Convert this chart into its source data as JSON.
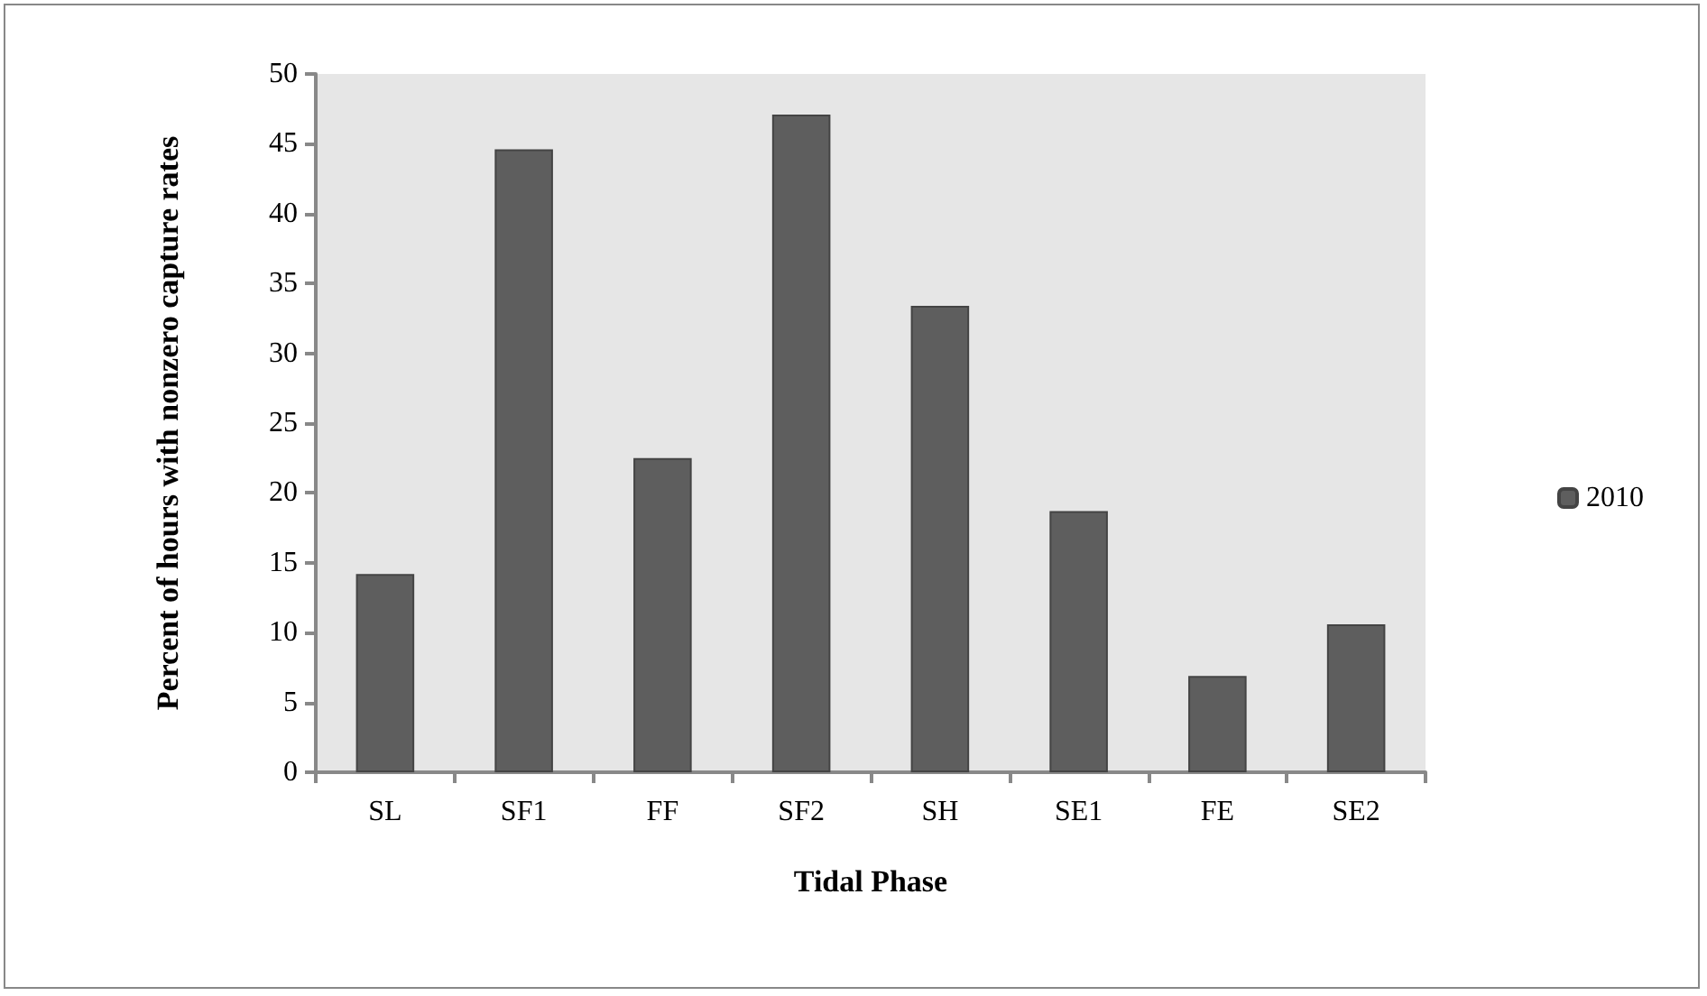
{
  "chart_data": {
    "type": "bar",
    "xlabel": "Tidal Phase",
    "ylabel": "Percent of hours with nonzero capture rates",
    "categories": [
      "SL",
      "SF1",
      "FF",
      "SF2",
      "SH",
      "SE1",
      "FE",
      "SE2"
    ],
    "series": [
      {
        "name": "2010",
        "color": "#5e5e5e",
        "values": [
          14.2,
          44.6,
          22.5,
          47.1,
          33.4,
          18.7,
          6.9,
          10.6
        ]
      }
    ],
    "ylim": [
      0,
      50
    ],
    "yticks": [
      0,
      5,
      10,
      15,
      20,
      25,
      30,
      35,
      40,
      45,
      50
    ],
    "grid": false,
    "legend": "right"
  }
}
